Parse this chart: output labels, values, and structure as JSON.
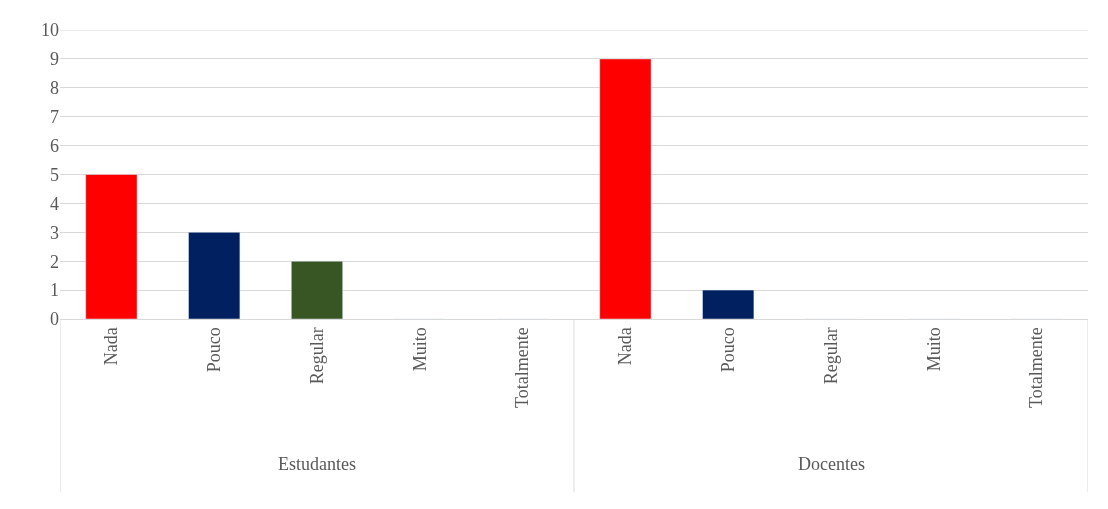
{
  "chart_data": {
    "type": "bar",
    "categories": [
      "Nada",
      "Pouco",
      "Regular",
      "Muito",
      "Totalmente",
      "Nada",
      "Pouco",
      "Regular",
      "Muito",
      "Totalmente"
    ],
    "values": [
      5,
      3,
      2,
      0,
      0,
      9,
      1,
      0,
      0,
      0
    ],
    "colors": [
      "#ff0000",
      "#002060",
      "#375623",
      null,
      null,
      "#ff0000",
      "#002060",
      null,
      null,
      null
    ],
    "ylim": [
      0,
      10
    ],
    "yticks": [
      0,
      1,
      2,
      3,
      4,
      5,
      6,
      7,
      8,
      9,
      10
    ],
    "grid": "y",
    "annotations": [
      "Estudantes",
      "Docentes"
    ]
  }
}
